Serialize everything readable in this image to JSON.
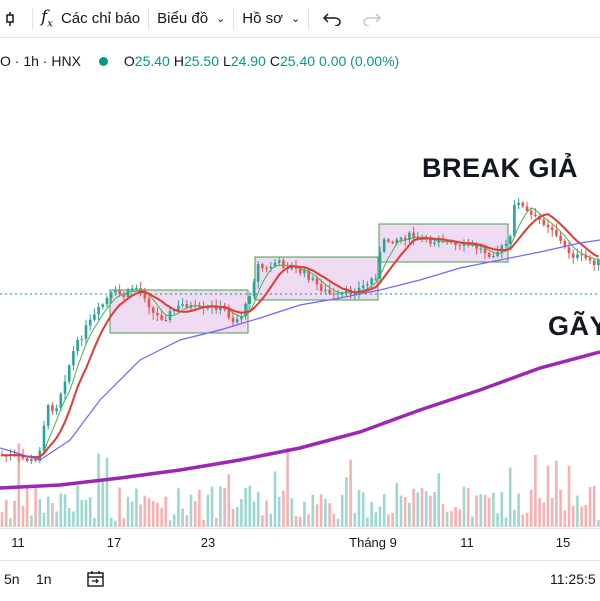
{
  "toolbar": {
    "indicators_label": "Các chỉ báo",
    "chart_label": "Biểu đồ",
    "profile_label": "Hồ sơ",
    "undo_icon": "undo-icon",
    "redo_icon": "redo-icon"
  },
  "legend": {
    "symbol": "O · 1h · HNX",
    "open_key": "O",
    "open": "25.40",
    "high_key": "H",
    "high": "25.50",
    "low_key": "L",
    "low": "24.90",
    "close_key": "C",
    "close": "25.40",
    "change": "0.00 (0.00%)",
    "up_color": "#089981"
  },
  "annotations": {
    "break": "BREAK GIẢ",
    "gay": "GÃY"
  },
  "xaxis": {
    "labels": [
      "11",
      "17",
      "23",
      "Tháng 9",
      "11",
      "15"
    ]
  },
  "bottombar": {
    "range_5n": "5n",
    "range_1n": "1n",
    "time": "11:25:5"
  },
  "chart_data": {
    "type": "candlestick",
    "symbol_exchange": "HNX",
    "interval": "1h",
    "colors": {
      "up": "#26a69a",
      "down": "#ef5350",
      "ma_green": "#4caf50",
      "ma_red": "#e53935",
      "ma_purple": "#7b61ff",
      "ma_long": "#9c27b0",
      "box_fill": "#e1bee7",
      "box_stroke": "#43a047"
    },
    "price_path": [
      [
        0,
        455
      ],
      [
        10,
        456
      ],
      [
        20,
        458
      ],
      [
        28,
        460
      ],
      [
        36,
        462
      ],
      [
        42,
        440
      ],
      [
        46,
        408
      ],
      [
        56,
        408
      ],
      [
        66,
        375
      ],
      [
        74,
        350
      ],
      [
        86,
        328
      ],
      [
        96,
        314
      ],
      [
        106,
        300
      ],
      [
        114,
        292
      ],
      [
        124,
        296
      ],
      [
        134,
        286
      ],
      [
        144,
        294
      ],
      [
        154,
        315
      ],
      [
        164,
        318
      ],
      [
        174,
        310
      ],
      [
        184,
        304
      ],
      [
        194,
        308
      ],
      [
        204,
        311
      ],
      [
        214,
        306
      ],
      [
        224,
        310
      ],
      [
        234,
        322
      ],
      [
        244,
        312
      ],
      [
        252,
        286
      ],
      [
        258,
        265
      ],
      [
        266,
        270
      ],
      [
        276,
        262
      ],
      [
        286,
        266
      ],
      [
        296,
        270
      ],
      [
        306,
        274
      ],
      [
        316,
        284
      ],
      [
        326,
        292
      ],
      [
        336,
        297
      ],
      [
        346,
        293
      ],
      [
        356,
        290
      ],
      [
        366,
        285
      ],
      [
        376,
        275
      ],
      [
        382,
        243
      ],
      [
        390,
        240
      ],
      [
        400,
        238
      ],
      [
        410,
        236
      ],
      [
        420,
        240
      ],
      [
        430,
        242
      ],
      [
        440,
        238
      ],
      [
        450,
        244
      ],
      [
        460,
        248
      ],
      [
        470,
        245
      ],
      [
        480,
        249
      ],
      [
        490,
        254
      ],
      [
        500,
        250
      ],
      [
        510,
        240
      ],
      [
        516,
        195
      ],
      [
        524,
        210
      ],
      [
        534,
        218
      ],
      [
        544,
        222
      ],
      [
        554,
        230
      ],
      [
        564,
        248
      ],
      [
        574,
        256
      ],
      [
        584,
        258
      ],
      [
        594,
        262
      ],
      [
        600,
        262
      ]
    ],
    "moving_averages": {
      "ma_green_lag": 2,
      "ma_red_lag": 4,
      "ma_purple_points": [
        [
          0,
          448
        ],
        [
          40,
          460
        ],
        [
          70,
          440
        ],
        [
          100,
          400
        ],
        [
          140,
          360
        ],
        [
          180,
          340
        ],
        [
          220,
          330
        ],
        [
          260,
          318
        ],
        [
          300,
          305
        ],
        [
          340,
          298
        ],
        [
          380,
          290
        ],
        [
          420,
          280
        ],
        [
          460,
          268
        ],
        [
          500,
          260
        ],
        [
          540,
          252
        ],
        [
          580,
          243
        ],
        [
          600,
          240
        ]
      ],
      "ma_long_points": [
        [
          0,
          488
        ],
        [
          60,
          485
        ],
        [
          120,
          478
        ],
        [
          180,
          470
        ],
        [
          240,
          460
        ],
        [
          300,
          448
        ],
        [
          360,
          432
        ],
        [
          420,
          410
        ],
        [
          480,
          390
        ],
        [
          540,
          368
        ],
        [
          600,
          352
        ]
      ]
    },
    "consolidation_boxes": [
      {
        "from_x": 110,
        "to_x": 248,
        "y_top": 290,
        "y_bottom": 333
      },
      {
        "from_x": 255,
        "to_x": 378,
        "y_top": 257,
        "y_bottom": 300
      },
      {
        "from_x": 379,
        "to_x": 508,
        "y_top": 224,
        "y_bottom": 262
      }
    ],
    "price_line_y": 294,
    "volume_baseline_y": 527,
    "volume_max_height": 80
  }
}
